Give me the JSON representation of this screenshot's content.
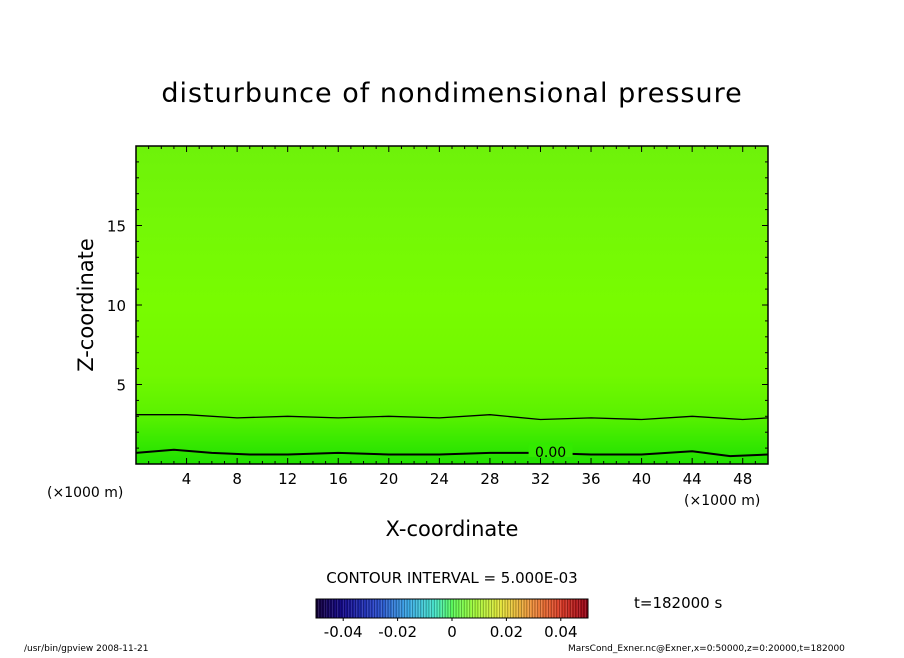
{
  "chart_data": {
    "type": "heatmap",
    "title": "disturbunce of nondimensional pressure",
    "xlabel": "X-coordinate",
    "ylabel": "Z-coordinate",
    "x_unit": "(×1000 m)",
    "y_unit": "(×1000 m)",
    "xlim": [
      0,
      50
    ],
    "ylim": [
      0,
      20
    ],
    "x_ticks": [
      4,
      8,
      12,
      16,
      20,
      24,
      28,
      32,
      36,
      40,
      44,
      48
    ],
    "y_ticks": [
      5,
      10,
      15
    ],
    "contour_label": "0.00",
    "contour_lines": [
      {
        "label": "0.00",
        "x": [
          0,
          3,
          6,
          9,
          12,
          16,
          20,
          24,
          28,
          32,
          36,
          40,
          44,
          47,
          50
        ],
        "z": [
          0.7,
          0.9,
          0.7,
          0.6,
          0.6,
          0.7,
          0.6,
          0.6,
          0.7,
          0.7,
          0.6,
          0.6,
          0.8,
          0.5,
          0.6
        ]
      },
      {
        "label": "",
        "x": [
          0,
          4,
          8,
          12,
          16,
          20,
          24,
          28,
          32,
          36,
          40,
          44,
          48,
          50
        ],
        "z": [
          3.1,
          3.1,
          2.9,
          3.0,
          2.9,
          3.0,
          2.9,
          3.1,
          2.8,
          2.9,
          2.8,
          3.0,
          2.8,
          2.9
        ]
      }
    ],
    "contour_interval": "CONTOUR INTERVAL = 5.000E-03",
    "time_label": "t=182000  s",
    "colorbar": {
      "range": [
        -0.05,
        0.05
      ],
      "ticks": [
        "-0.04",
        "-0.02",
        "0",
        "0.02",
        "0.04"
      ],
      "tick_values": [
        -0.04,
        -0.02,
        0,
        0.02,
        0.04
      ]
    },
    "colors": {
      "field_dominant": "#77ff00",
      "field_bottom": "#22ee00",
      "contour": "#000000"
    }
  },
  "footer": {
    "left": "/usr/bin/gpview   2008-11-21",
    "right": "MarsCond_Exner.nc@Exner,x=0:50000,z=0:20000,t=182000"
  }
}
